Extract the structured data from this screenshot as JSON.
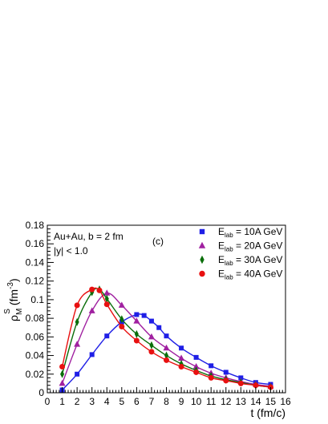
{
  "chart_data": {
    "type": "line",
    "xlabel": "t (fm/c)",
    "ylabel": {
      "main": "ρ",
      "sup": "S",
      "sub": "M",
      "unit": " (fm",
      "unit_sup": "-3",
      "unit_end": ")"
    },
    "xlim": [
      0,
      16
    ],
    "ylim": [
      0,
      0.18
    ],
    "x_ticks": [
      0,
      1,
      2,
      3,
      4,
      5,
      6,
      7,
      8,
      9,
      10,
      11,
      12,
      13,
      14,
      15,
      16
    ],
    "y_ticks": [
      0,
      0.02,
      0.04,
      0.06,
      0.08,
      0.1,
      0.12,
      0.14,
      0.16,
      0.18
    ],
    "y_tick_labels": [
      "0",
      "0.02",
      "0.04",
      "0.06",
      "0.08",
      "0.1",
      "0.12",
      "0.14",
      "0.16",
      "0.18"
    ],
    "annotations": [
      {
        "id": "system",
        "text": "Au+Au, b = 2 fm"
      },
      {
        "id": "rapidity",
        "text": "|y| < 1.0"
      },
      {
        "id": "panel",
        "text": "(c)"
      }
    ],
    "legend": {
      "placement": "top-right"
    },
    "series": [
      {
        "name_pre": "E",
        "name_sub": "lab",
        "name_post": " = 10A GeV",
        "color": "#1f1fe6",
        "marker": "square",
        "x": [
          1,
          2,
          3,
          4,
          5,
          6,
          6.5,
          7,
          7.5,
          8,
          9,
          10,
          11,
          12,
          13,
          14,
          15
        ],
        "y": [
          0.003,
          0.02,
          0.041,
          0.061,
          0.076,
          0.084,
          0.083,
          0.077,
          0.07,
          0.061,
          0.048,
          0.038,
          0.029,
          0.022,
          0.016,
          0.011,
          0.009
        ]
      },
      {
        "name_pre": "E",
        "name_sub": "lab",
        "name_post": " = 20A GeV",
        "color": "#a020a0",
        "marker": "triangle",
        "x": [
          1,
          2,
          3,
          4,
          5,
          6,
          7,
          8,
          9,
          10,
          11,
          12,
          13,
          14,
          15
        ],
        "y": [
          0.01,
          0.052,
          0.088,
          0.107,
          0.094,
          0.077,
          0.06,
          0.048,
          0.037,
          0.028,
          0.021,
          0.016,
          0.012,
          0.009,
          0.007
        ]
      },
      {
        "name_pre": "E",
        "name_sub": "lab",
        "name_post": " = 30A GeV",
        "color": "#0a6e0a",
        "marker": "diamond",
        "x": [
          1,
          2,
          3,
          3.5,
          4,
          5,
          6,
          7,
          8,
          9,
          10,
          11,
          12,
          13,
          14,
          15
        ],
        "y": [
          0.02,
          0.076,
          0.108,
          0.111,
          0.101,
          0.079,
          0.063,
          0.051,
          0.04,
          0.031,
          0.024,
          0.018,
          0.014,
          0.011,
          0.008,
          0.006
        ]
      },
      {
        "name_pre": "E",
        "name_sub": "lab",
        "name_post": " = 40A GeV",
        "color": "#e81010",
        "marker": "circle",
        "x": [
          1,
          2,
          3,
          3.5,
          4,
          5,
          6,
          7,
          8,
          9,
          10,
          11,
          12,
          13,
          14,
          15
        ],
        "y": [
          0.028,
          0.094,
          0.111,
          0.11,
          0.095,
          0.071,
          0.056,
          0.044,
          0.035,
          0.028,
          0.022,
          0.016,
          0.013,
          0.01,
          0.008,
          0.006
        ]
      }
    ]
  }
}
